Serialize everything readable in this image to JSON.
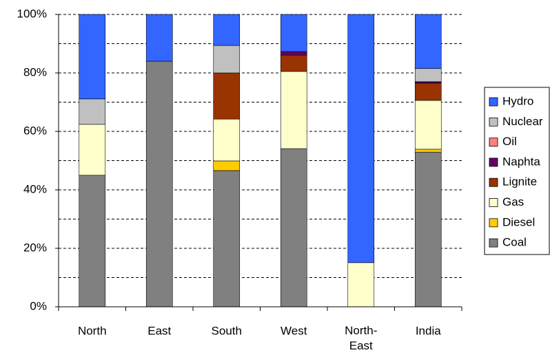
{
  "chart_data": {
    "type": "stacked_bar_100",
    "categories": [
      "North",
      "East",
      "South",
      "West",
      "North-East",
      "India"
    ],
    "series": [
      {
        "name": "Coal",
        "color": "#808080",
        "values": [
          45,
          84,
          46.6,
          54.1,
          0,
          52.9
        ]
      },
      {
        "name": "Diesel",
        "color": "#ffcc00",
        "values": [
          0,
          0,
          3.3,
          0,
          0,
          1
        ]
      },
      {
        "name": "Gas",
        "color": "#ffffcc",
        "values": [
          17.4,
          0,
          14.3,
          26.4,
          15.1,
          16.7
        ]
      },
      {
        "name": "Lignite",
        "color": "#993300",
        "values": [
          0,
          0,
          15.8,
          5.6,
          0,
          5.9
        ]
      },
      {
        "name": "Naphta",
        "color": "#660066",
        "values": [
          0,
          0,
          0,
          1.2,
          0,
          0.4
        ]
      },
      {
        "name": "Oil",
        "color": "#ff8080",
        "values": [
          0,
          0,
          0,
          0,
          0,
          0.1
        ]
      },
      {
        "name": "Nuclear",
        "color": "#c0c0c0",
        "values": [
          8.7,
          0,
          9.4,
          0,
          0,
          4.5
        ]
      },
      {
        "name": "Hydro",
        "color": "#3366ff",
        "values": [
          28.9,
          16,
          10.6,
          12.7,
          84.9,
          18.5
        ]
      }
    ],
    "ylim": [
      0,
      100
    ],
    "yticks": [
      {
        "value": 0,
        "label": "0%"
      },
      {
        "value": 20,
        "label": "20%"
      },
      {
        "value": 40,
        "label": "40%"
      },
      {
        "value": 60,
        "label": "60%"
      },
      {
        "value": 80,
        "label": "80%"
      },
      {
        "value": 100,
        "label": "100%"
      }
    ],
    "grid_lines": [
      10,
      20,
      30,
      40,
      50,
      60,
      70,
      80,
      90,
      100
    ],
    "grid": true,
    "legend": "right"
  }
}
